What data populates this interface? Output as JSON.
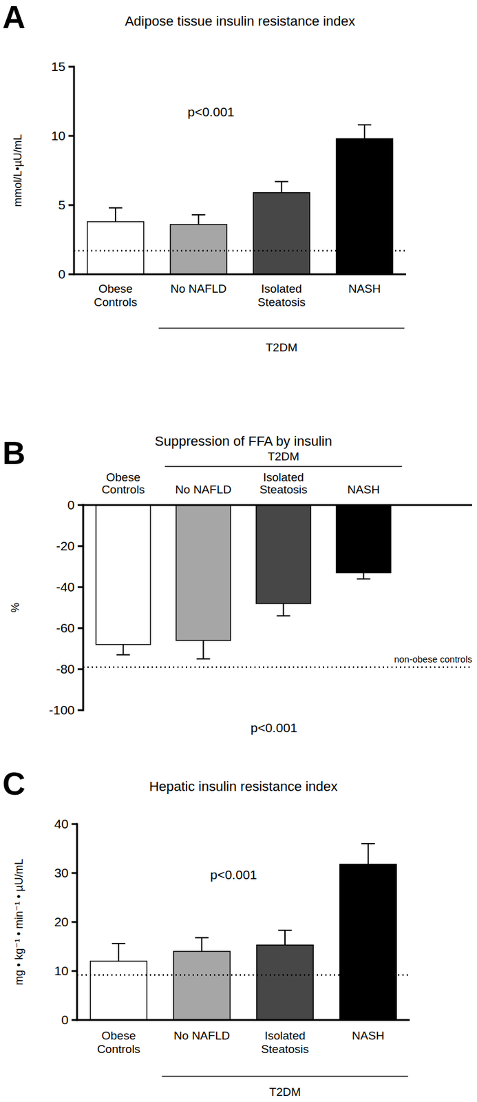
{
  "chart_data": [
    {
      "type": "bar",
      "panel": "A",
      "title": "Adipose tissue insulin resistance index",
      "y_label": "mmol/L•µU/mL",
      "categories": [
        "Obese\nControls",
        "No NAFLD",
        "Isolated\nSteatosis",
        "NASH"
      ],
      "values": [
        3.8,
        3.6,
        5.9,
        9.8
      ],
      "errors": [
        1.0,
        0.7,
        0.8,
        1.0
      ],
      "colors": [
        "#ffffff",
        "#a6a6a6",
        "#474747",
        "#000000"
      ],
      "ylim": [
        0,
        15
      ],
      "yticks": [
        0,
        5,
        10,
        15
      ],
      "reference_line": {
        "value": 1.7
      },
      "group": {
        "label": "T2DM",
        "categories": [
          "No NAFLD",
          "Isolated\nSteatosis",
          "NASH"
        ]
      },
      "annotation": "p<0.001"
    },
    {
      "type": "bar",
      "panel": "B",
      "title": "Suppression of FFA by insulin",
      "y_label": "%",
      "categories": [
        "Obese\nControls",
        "No NAFLD",
        "Isolated\nSteatosis",
        "NASH"
      ],
      "values": [
        -68,
        -66,
        -48,
        -33
      ],
      "errors": [
        5,
        9,
        6,
        3
      ],
      "colors": [
        "#ffffff",
        "#a6a6a6",
        "#474747",
        "#000000"
      ],
      "ylim": [
        -100,
        0
      ],
      "yticks": [
        -100,
        -80,
        -60,
        -40,
        -20,
        0
      ],
      "reference_line": {
        "value": -79,
        "label": "non-obese controls"
      },
      "group": {
        "label": "T2DM",
        "categories": [
          "No NAFLD",
          "Isolated\nSteatosis",
          "NASH"
        ]
      },
      "annotation": "p<0.001"
    },
    {
      "type": "bar",
      "panel": "C",
      "title": "Hepatic insulin resistance index",
      "y_label": "mg • kg⁻¹ • min⁻¹ • µU/mL",
      "categories": [
        "Obese\nControls",
        "No NAFLD",
        "Isolated\nSteatosis",
        "NASH"
      ],
      "values": [
        12.0,
        14.0,
        15.3,
        31.8
      ],
      "errors": [
        3.6,
        2.8,
        3.0,
        4.2
      ],
      "colors": [
        "#ffffff",
        "#a6a6a6",
        "#474747",
        "#000000"
      ],
      "ylim": [
        0,
        40
      ],
      "yticks": [
        0,
        10,
        20,
        30,
        40
      ],
      "reference_line": {
        "value": 9.2
      },
      "group": {
        "label": "T2DM",
        "categories": [
          "No NAFLD",
          "Isolated\nSteatosis",
          "NASH"
        ]
      },
      "annotation": "p<0.001"
    }
  ]
}
